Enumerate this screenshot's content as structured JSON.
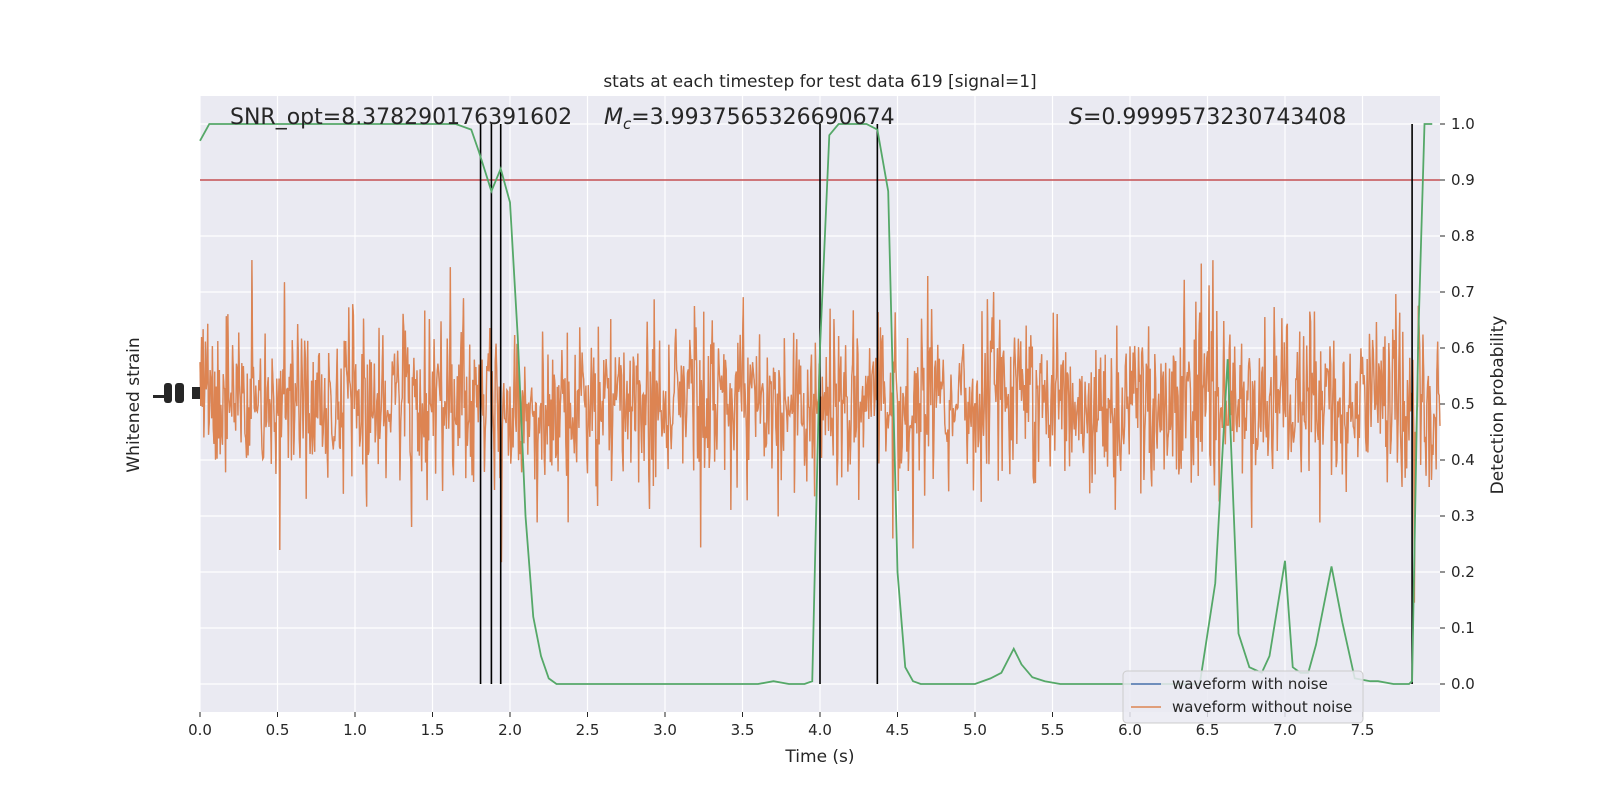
{
  "chart_data": {
    "type": "line",
    "title": "stats at each timestep for test data 619 [signal=1]",
    "xlabel": "Time (s)",
    "ylabel_left": "Whitened strain",
    "ylabel_right": "Detection probability",
    "xlim": [
      0,
      8
    ],
    "ylim_right": [
      -0.05,
      1.05
    ],
    "x_ticks": [
      "0.0",
      "0.5",
      "1.0",
      "1.5",
      "2.0",
      "2.5",
      "3.0",
      "3.5",
      "4.0",
      "4.5",
      "5.0",
      "5.5",
      "6.0",
      "6.5",
      "7.0",
      "7.5"
    ],
    "y_ticks_right": [
      "0.0",
      "0.1",
      "0.2",
      "0.3",
      "0.4",
      "0.5",
      "0.6",
      "0.7",
      "0.8",
      "0.9",
      "1.0"
    ],
    "annotations": {
      "snr": "SNR_opt=8.378290176391602",
      "mc_symbol": "M",
      "mc_sub": "c",
      "mc_value": "=3.9937565326690674",
      "s_symbol": "S",
      "s_value": "=0.9999573230743408"
    },
    "threshold": 0.9,
    "vertical_lines": [
      1.81,
      1.88,
      1.94,
      4.0,
      4.37,
      7.82
    ],
    "series": [
      {
        "name": "waveform with noise",
        "color": "#4c72b0",
        "note_values": "dense strain trace hidden beneath orange trace"
      },
      {
        "name": "waveform without noise",
        "color": "#dd8452"
      }
    ],
    "detection_probability": {
      "color": "#55a868",
      "x": [
        0.0,
        0.06,
        0.5,
        1.0,
        1.5,
        1.65,
        1.75,
        1.8,
        1.88,
        1.94,
        2.0,
        2.05,
        2.1,
        2.15,
        2.2,
        2.25,
        2.3,
        2.5,
        3.0,
        3.5,
        3.6,
        3.7,
        3.8,
        3.9,
        3.95,
        4.0,
        4.06,
        4.12,
        4.18,
        4.3,
        4.37,
        4.44,
        4.5,
        4.55,
        4.6,
        4.65,
        4.7,
        4.8,
        5.0,
        5.1,
        5.17,
        5.25,
        5.3,
        5.37,
        5.45,
        5.55,
        5.7,
        6.0,
        6.3,
        6.45,
        6.55,
        6.63,
        6.7,
        6.77,
        6.85,
        6.9,
        7.0,
        7.05,
        7.1,
        7.15,
        7.2,
        7.3,
        7.37,
        7.45,
        7.55,
        7.6,
        7.7,
        7.8,
        7.82,
        7.86,
        7.9,
        7.95
      ],
      "y": [
        0.97,
        1.0,
        1.0,
        1.0,
        1.0,
        1.0,
        0.99,
        0.95,
        0.88,
        0.92,
        0.86,
        0.62,
        0.3,
        0.12,
        0.05,
        0.01,
        0.0,
        0.0,
        0.0,
        0.0,
        0.0,
        0.005,
        0.0,
        0.0,
        0.005,
        0.6,
        0.98,
        1.0,
        1.0,
        1.0,
        0.99,
        0.88,
        0.2,
        0.03,
        0.005,
        0.0,
        0.0,
        0.0,
        0.0,
        0.01,
        0.02,
        0.063,
        0.035,
        0.012,
        0.005,
        0.0,
        0.0,
        0.0,
        0.0,
        0.0,
        0.18,
        0.58,
        0.09,
        0.03,
        0.02,
        0.05,
        0.22,
        0.03,
        0.02,
        0.02,
        0.07,
        0.21,
        0.11,
        0.01,
        0.005,
        0.005,
        0.0,
        0.0,
        0.005,
        0.62,
        1.0,
        1.0
      ]
    },
    "legend_position": "lower right",
    "grid": true
  }
}
